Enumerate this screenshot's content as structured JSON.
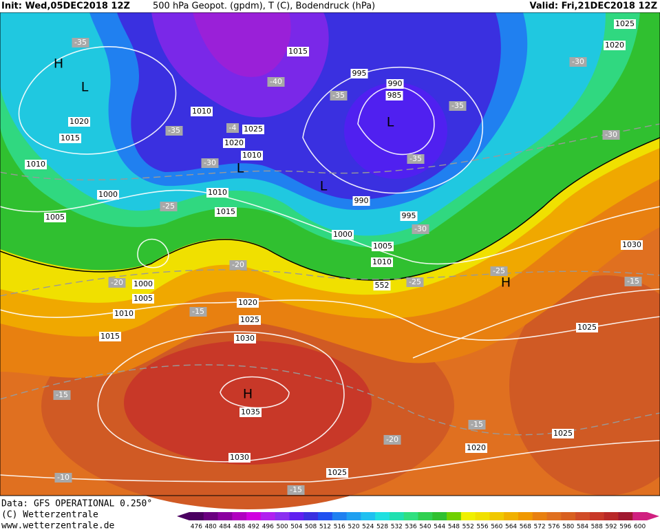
{
  "header": {
    "init": "Init: Wed,05DEC2018 12Z",
    "product": "500 hPa Geopot. (gpdm), T (C), Bodendruck (hPa)",
    "valid": "Valid: Fri,21DEC2018 12Z"
  },
  "footer": {
    "data": "Data: GFS OPERATIONAL 0.250°",
    "copyright": "(C) Wetterzentrale",
    "url": "www.wetterzentrale.de"
  },
  "labels": {
    "pressure": [
      1025,
      1020,
      1015,
      995,
      990,
      985,
      1010,
      1025,
      1020,
      1010,
      1020,
      1015,
      1010,
      1000,
      1010,
      1015,
      1005,
      990,
      995,
      1000,
      1005,
      1010,
      1030,
      1000,
      1005,
      1010,
      1020,
      1025,
      1030,
      1015,
      1025,
      1035,
      1030,
      1025,
      1020,
      1025,
      552
    ],
    "temperature": [
      -35,
      -30,
      -40,
      -35,
      -35,
      -35,
      -4,
      -30,
      -30,
      -35,
      -25,
      -30,
      -20,
      -25,
      -25,
      -20,
      -15,
      -15,
      -15,
      -15,
      -20,
      -10,
      -15
    ],
    "centers": [
      "H",
      "L",
      "L",
      "L",
      "L",
      "H",
      "H"
    ]
  },
  "colorbar": {
    "values": [
      476,
      480,
      484,
      488,
      492,
      496,
      500,
      504,
      508,
      512,
      516,
      520,
      524,
      528,
      532,
      536,
      540,
      544,
      548,
      552,
      556,
      560,
      564,
      568,
      572,
      576,
      580,
      584,
      588,
      592,
      596,
      600
    ],
    "colors": [
      "#4a0060",
      "#6a0080",
      "#8a00a0",
      "#b000c0",
      "#d000e0",
      "#b020f0",
      "#8a30f0",
      "#6020f0",
      "#3a30e0",
      "#2050f0",
      "#2080f0",
      "#20a0f0",
      "#20c0f0",
      "#20e0e0",
      "#20e0b0",
      "#30e080",
      "#30d050",
      "#30c030",
      "#70d000",
      "#f0f000",
      "#f0e000",
      "#f0c800",
      "#f0b000",
      "#f09800",
      "#e88010",
      "#e07020",
      "#d86020",
      "#d04c28",
      "#c83828",
      "#b82828",
      "#a01830",
      "#d02080"
    ]
  }
}
